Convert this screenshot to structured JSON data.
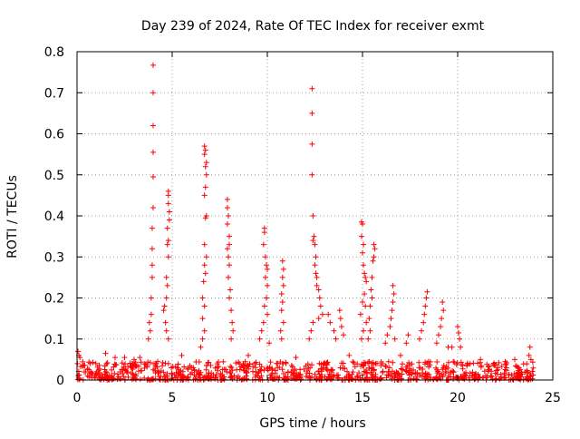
{
  "chart_data": {
    "type": "scatter",
    "title": "Day 239 of 2024, Rate Of TEC Index for receiver exmt",
    "xlabel": "GPS time / hours",
    "ylabel": "ROTI / TECUs",
    "xlim": [
      0,
      25
    ],
    "ylim": [
      0,
      0.8
    ],
    "xticks": [
      "0",
      "5",
      "10",
      "15",
      "20",
      "25"
    ],
    "yticks": [
      "0",
      "0.1",
      "0.2",
      "0.3",
      "0.4",
      "0.5",
      "0.6",
      "0.7",
      "0.8"
    ],
    "grid": true,
    "marker": "+",
    "color": "#ff0000",
    "points": [
      [
        4.0,
        0.767
      ],
      [
        4.0,
        0.7
      ],
      [
        4.0,
        0.62
      ],
      [
        4.0,
        0.555
      ],
      [
        4.0,
        0.495
      ],
      [
        4.0,
        0.42
      ],
      [
        3.95,
        0.37
      ],
      [
        3.95,
        0.32
      ],
      [
        3.95,
        0.28
      ],
      [
        3.95,
        0.25
      ],
      [
        3.9,
        0.2
      ],
      [
        3.9,
        0.16
      ],
      [
        3.8,
        0.14
      ],
      [
        3.85,
        0.12
      ],
      [
        3.75,
        0.1
      ],
      [
        4.8,
        0.46
      ],
      [
        4.8,
        0.45
      ],
      [
        4.8,
        0.43
      ],
      [
        4.85,
        0.41
      ],
      [
        4.85,
        0.39
      ],
      [
        4.75,
        0.37
      ],
      [
        4.8,
        0.34
      ],
      [
        4.75,
        0.33
      ],
      [
        4.8,
        0.3
      ],
      [
        4.7,
        0.25
      ],
      [
        4.75,
        0.23
      ],
      [
        4.7,
        0.2
      ],
      [
        4.6,
        0.18
      ],
      [
        4.55,
        0.17
      ],
      [
        4.65,
        0.14
      ],
      [
        4.7,
        0.12
      ],
      [
        4.8,
        0.1
      ],
      [
        6.7,
        0.57
      ],
      [
        6.75,
        0.56
      ],
      [
        6.7,
        0.55
      ],
      [
        6.8,
        0.53
      ],
      [
        6.75,
        0.52
      ],
      [
        6.8,
        0.5
      ],
      [
        6.75,
        0.47
      ],
      [
        6.7,
        0.45
      ],
      [
        6.8,
        0.4
      ],
      [
        6.75,
        0.395
      ],
      [
        6.7,
        0.33
      ],
      [
        6.8,
        0.3
      ],
      [
        6.7,
        0.28
      ],
      [
        6.75,
        0.26
      ],
      [
        6.65,
        0.24
      ],
      [
        6.6,
        0.2
      ],
      [
        6.7,
        0.18
      ],
      [
        6.6,
        0.15
      ],
      [
        6.7,
        0.12
      ],
      [
        6.6,
        0.1
      ],
      [
        6.5,
        0.08
      ],
      [
        7.9,
        0.44
      ],
      [
        7.9,
        0.42
      ],
      [
        7.95,
        0.4
      ],
      [
        7.9,
        0.38
      ],
      [
        8.0,
        0.35
      ],
      [
        8.0,
        0.33
      ],
      [
        7.9,
        0.32
      ],
      [
        7.95,
        0.3
      ],
      [
        8.0,
        0.28
      ],
      [
        7.95,
        0.25
      ],
      [
        8.05,
        0.22
      ],
      [
        8.0,
        0.2
      ],
      [
        8.1,
        0.17
      ],
      [
        8.15,
        0.14
      ],
      [
        8.2,
        0.12
      ],
      [
        8.1,
        0.1
      ],
      [
        9.85,
        0.37
      ],
      [
        9.85,
        0.36
      ],
      [
        9.8,
        0.33
      ],
      [
        9.9,
        0.3
      ],
      [
        9.95,
        0.28
      ],
      [
        10.0,
        0.27
      ],
      [
        9.9,
        0.25
      ],
      [
        10.0,
        0.23
      ],
      [
        9.95,
        0.2
      ],
      [
        9.85,
        0.18
      ],
      [
        10.0,
        0.16
      ],
      [
        9.8,
        0.14
      ],
      [
        9.7,
        0.12
      ],
      [
        9.6,
        0.1
      ],
      [
        10.1,
        0.09
      ],
      [
        10.8,
        0.29
      ],
      [
        10.85,
        0.27
      ],
      [
        10.8,
        0.25
      ],
      [
        10.85,
        0.23
      ],
      [
        10.75,
        0.21
      ],
      [
        10.8,
        0.19
      ],
      [
        10.75,
        0.17
      ],
      [
        10.85,
        0.14
      ],
      [
        10.7,
        0.12
      ],
      [
        10.75,
        0.1
      ],
      [
        12.35,
        0.71
      ],
      [
        12.35,
        0.65
      ],
      [
        12.35,
        0.575
      ],
      [
        12.35,
        0.5
      ],
      [
        12.4,
        0.4
      ],
      [
        12.45,
        0.35
      ],
      [
        12.4,
        0.34
      ],
      [
        12.5,
        0.33
      ],
      [
        12.55,
        0.3
      ],
      [
        12.5,
        0.28
      ],
      [
        12.55,
        0.26
      ],
      [
        12.6,
        0.25
      ],
      [
        12.6,
        0.23
      ],
      [
        12.7,
        0.22
      ],
      [
        12.75,
        0.2
      ],
      [
        12.8,
        0.18
      ],
      [
        12.9,
        0.16
      ],
      [
        12.7,
        0.15
      ],
      [
        12.4,
        0.14
      ],
      [
        12.3,
        0.12
      ],
      [
        12.2,
        0.1
      ],
      [
        13.2,
        0.16
      ],
      [
        13.3,
        0.14
      ],
      [
        13.5,
        0.12
      ],
      [
        13.8,
        0.17
      ],
      [
        13.85,
        0.15
      ],
      [
        13.9,
        0.13
      ],
      [
        14.0,
        0.11
      ],
      [
        13.6,
        0.1
      ],
      [
        14.95,
        0.385
      ],
      [
        15.0,
        0.38
      ],
      [
        14.95,
        0.35
      ],
      [
        15.05,
        0.33
      ],
      [
        15.0,
        0.31
      ],
      [
        15.05,
        0.28
      ],
      [
        15.1,
        0.26
      ],
      [
        15.15,
        0.25
      ],
      [
        15.2,
        0.24
      ],
      [
        15.1,
        0.21
      ],
      [
        15.0,
        0.19
      ],
      [
        15.15,
        0.18
      ],
      [
        14.9,
        0.16
      ],
      [
        15.2,
        0.14
      ],
      [
        15.05,
        0.12
      ],
      [
        14.95,
        0.1
      ],
      [
        15.6,
        0.33
      ],
      [
        15.65,
        0.32
      ],
      [
        15.6,
        0.3
      ],
      [
        15.55,
        0.29
      ],
      [
        15.5,
        0.25
      ],
      [
        15.45,
        0.22
      ],
      [
        15.5,
        0.2
      ],
      [
        15.4,
        0.18
      ],
      [
        15.35,
        0.15
      ],
      [
        15.4,
        0.12
      ],
      [
        15.3,
        0.1
      ],
      [
        16.6,
        0.23
      ],
      [
        16.65,
        0.21
      ],
      [
        16.6,
        0.19
      ],
      [
        16.55,
        0.17
      ],
      [
        16.5,
        0.15
      ],
      [
        16.45,
        0.13
      ],
      [
        16.3,
        0.11
      ],
      [
        16.2,
        0.09
      ],
      [
        16.7,
        0.1
      ],
      [
        18.4,
        0.215
      ],
      [
        18.35,
        0.2
      ],
      [
        18.3,
        0.18
      ],
      [
        18.25,
        0.16
      ],
      [
        18.2,
        0.14
      ],
      [
        18.1,
        0.12
      ],
      [
        17.4,
        0.11
      ],
      [
        17.3,
        0.09
      ],
      [
        18.0,
        0.1
      ],
      [
        19.2,
        0.19
      ],
      [
        19.25,
        0.17
      ],
      [
        19.15,
        0.15
      ],
      [
        19.1,
        0.13
      ],
      [
        19.0,
        0.11
      ],
      [
        18.9,
        0.09
      ],
      [
        19.5,
        0.08
      ],
      [
        19.7,
        0.08
      ],
      [
        20.0,
        0.13
      ],
      [
        20.05,
        0.115
      ],
      [
        20.1,
        0.1
      ],
      [
        20.15,
        0.08
      ],
      [
        23.8,
        0.08
      ],
      [
        23.75,
        0.06
      ],
      [
        23.85,
        0.05
      ],
      [
        0.05,
        0.07
      ],
      [
        0.1,
        0.06
      ],
      [
        0.15,
        0.055
      ],
      [
        1.5,
        0.065
      ],
      [
        2.0,
        0.055
      ],
      [
        2.5,
        0.055
      ],
      [
        3.0,
        0.05
      ],
      [
        3.3,
        0.055
      ],
      [
        5.5,
        0.06
      ],
      [
        9.0,
        0.06
      ],
      [
        11.5,
        0.055
      ],
      [
        14.3,
        0.06
      ],
      [
        17.0,
        0.06
      ],
      [
        21.2,
        0.05
      ],
      [
        22.5,
        0.045
      ],
      [
        23.0,
        0.05
      ]
    ],
    "baseline_band": {
      "x_start": 0.0,
      "x_end": 24.0,
      "y_typical_max": 0.045,
      "count": 900
    }
  }
}
